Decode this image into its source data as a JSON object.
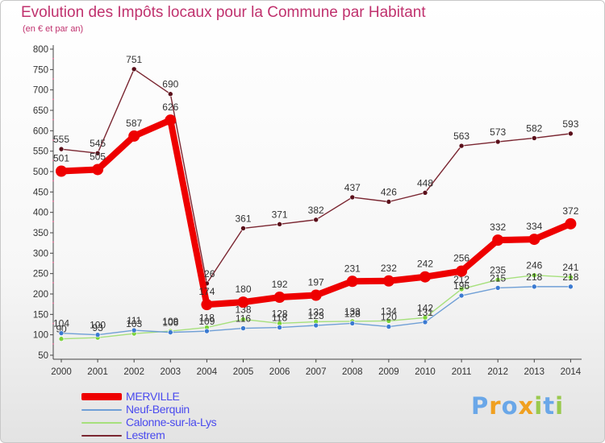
{
  "header": {
    "title": "Evolution des Impôts locaux pour la Commune par Habitant",
    "subtitle": "(en € et par an)"
  },
  "logo": {
    "text": "Proxiti"
  },
  "colors": {
    "title": "#c0326e",
    "legend_text": "#4a4aee",
    "axis_labels": "#333333"
  },
  "chart_data": {
    "type": "line",
    "title": "Evolution des Impôts locaux pour la Commune par Habitant",
    "subtitle": "(en € et par an)",
    "xlabel": "",
    "ylabel": "",
    "ylim": [
      50,
      800
    ],
    "y_ticks": [
      50,
      100,
      150,
      200,
      250,
      300,
      350,
      400,
      450,
      500,
      550,
      600,
      650,
      700,
      750,
      800
    ],
    "grid": false,
    "legend_position": "bottom-left",
    "categories": [
      "2000",
      "2001",
      "2002",
      "2003",
      "2004",
      "2005",
      "2006",
      "2007",
      "2008",
      "2009",
      "2010",
      "2011",
      "2012",
      "2013",
      "2014"
    ],
    "series": [
      {
        "name": "Lestrem",
        "color": "#7a2631",
        "marker": "#5a0f1a",
        "values": [
          555,
          545,
          751,
          690,
          226,
          361,
          371,
          382,
          437,
          426,
          448,
          563,
          573,
          582,
          593
        ]
      },
      {
        "name": "Calonne-sur-la-Lys",
        "color": "#a6e07c",
        "marker": "#7bd33a",
        "values": [
          90,
          93,
          103,
          109,
          118,
          138,
          128,
          132,
          133,
          134,
          142,
          212,
          235,
          246,
          241
        ]
      },
      {
        "name": "Neuf-Berquin",
        "color": "#6f9fd6",
        "marker": "#3b7ad1",
        "values": [
          104,
          100,
          111,
          106,
          109,
          116,
          118,
          123,
          128,
          120,
          131,
          196,
          215,
          218,
          218
        ]
      },
      {
        "name": "MERVILLE",
        "color": "#ee0000",
        "marker": "#ee0000",
        "values": [
          501,
          505,
          587,
          626,
          174,
          180,
          192,
          197,
          231,
          232,
          242,
          256,
          332,
          334,
          372
        ]
      }
    ],
    "legend_order": [
      "MERVILLE",
      "Neuf-Berquin",
      "Calonne-sur-la-Lys",
      "Lestrem"
    ]
  }
}
